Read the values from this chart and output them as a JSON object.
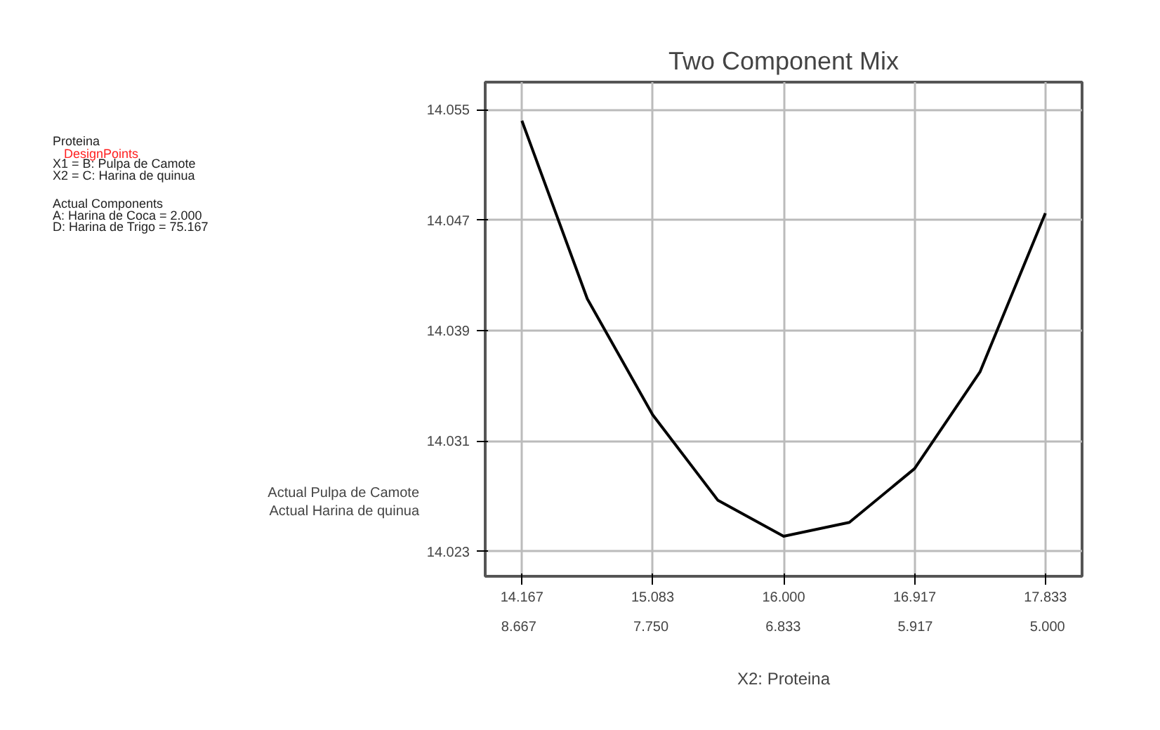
{
  "chart_data": {
    "type": "line",
    "title": "Two Component Mix",
    "xlabel": "X2: Proteina",
    "annotations": [
      "Actual Pulpa de Camote",
      "Actual Harina de quinua",
      "Proteina",
      "DesignPoints",
      "X1 = B: Pulpa de Camote",
      "X2 = C: Harina de quinua",
      "Actual Components",
      "A: Harina de Coca = 2.000",
      "D: Harina de Trigo = 75.167"
    ],
    "x": [
      14.167,
      14.625,
      15.083,
      15.54,
      16.0,
      16.46,
      16.917,
      17.375,
      17.833
    ],
    "series": [
      {
        "color": "#000000",
        "values": [
          14.0542,
          14.0413,
          14.0329,
          14.0267,
          14.0241,
          14.0251,
          14.029,
          14.036,
          14.0475
        ]
      }
    ],
    "xlim": [
      13.91,
      18.09
    ],
    "xticks": [
      14.167,
      15.083,
      {
        "value": 16.0,
        "label": "16.000"
      },
      16.917,
      17.833
    ],
    "x2lim": [
      8.9,
      4.76
    ],
    "x2ticks": [
      8.667,
      {
        "value": 7.75,
        "label": "7.750"
      },
      6.833,
      5.917,
      {
        "value": 5.0,
        "label": "5.000"
      }
    ],
    "ylim": [
      14.0212,
      14.057
    ],
    "yticks": [
      14.023,
      14.031,
      14.039,
      14.047,
      14.055
    ],
    "grid": true,
    "marker": "none",
    "line_style": "solid"
  }
}
